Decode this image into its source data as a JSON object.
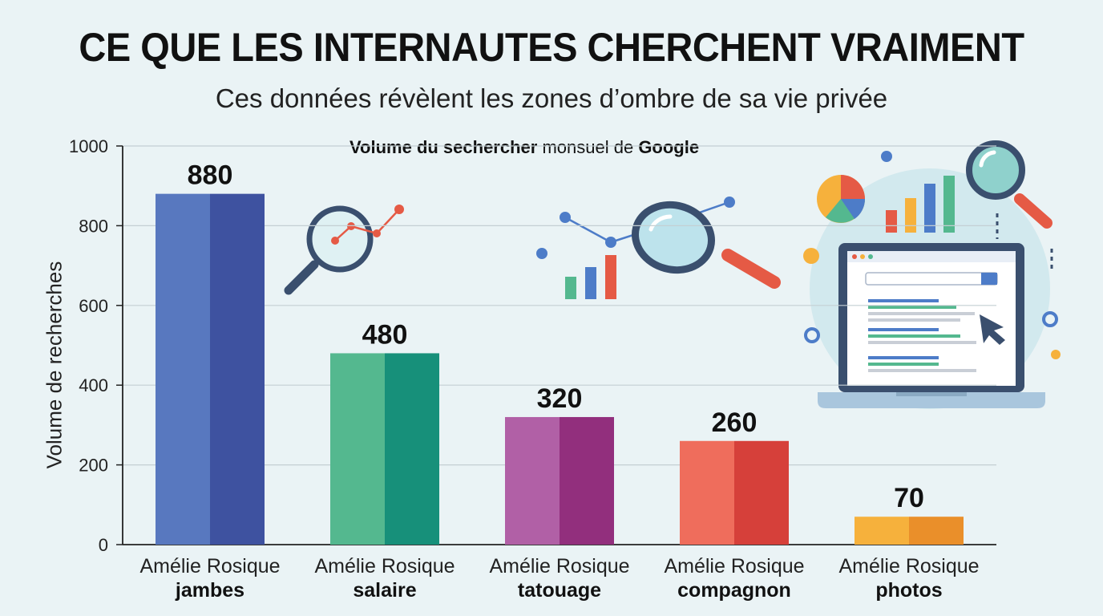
{
  "header": {
    "title": "CE QUE LES INTERNAUTES CHERCHENT VRAIMENT",
    "subtitle": "Ces données révèlent les zones d’ombre de sa vie privée"
  },
  "chart_data": {
    "type": "bar",
    "title_parts": [
      "Volume du sechercher",
      " monsuel de ",
      "Google"
    ],
    "ylabel": "Volume de recherches",
    "xlabel": "",
    "ylim": [
      0,
      1000
    ],
    "yticks": [
      0,
      200,
      400,
      600,
      800,
      1000
    ],
    "grid": true,
    "categories": [
      {
        "line1": "Amélie Rosique",
        "line2": "jambes"
      },
      {
        "line1": "Amélie Rosique",
        "line2": "salaire"
      },
      {
        "line1": "Amélie Rosique",
        "line2": "tatouage"
      },
      {
        "line1": "Amélie Rosique",
        "line2": "compagnon"
      },
      {
        "line1": "Amélie Rosique",
        "line2": "photos"
      }
    ],
    "values": [
      880,
      480,
      320,
      260,
      70
    ],
    "data_labels": [
      "880",
      "480",
      "320",
      "260",
      "70"
    ],
    "colors": [
      {
        "light": "#5878bf",
        "dark": "#3e52a0"
      },
      {
        "light": "#54b88f",
        "dark": "#17907a"
      },
      {
        "light": "#b160a6",
        "dark": "#922f7d"
      },
      {
        "light": "#ef6d5c",
        "dark": "#d6403a"
      },
      {
        "light": "#f6b13c",
        "dark": "#ea8f2a"
      }
    ]
  },
  "illustrations": {
    "icons": [
      "magnifier-icon",
      "trend-line-icon",
      "bar-graph-icon",
      "pie-chart-icon",
      "laptop-search-icon",
      "cursor-icon"
    ],
    "accent_colors": [
      "#3a4f6e",
      "#e55a45",
      "#4d7cc8",
      "#5fb0aa",
      "#f6b13c"
    ]
  }
}
